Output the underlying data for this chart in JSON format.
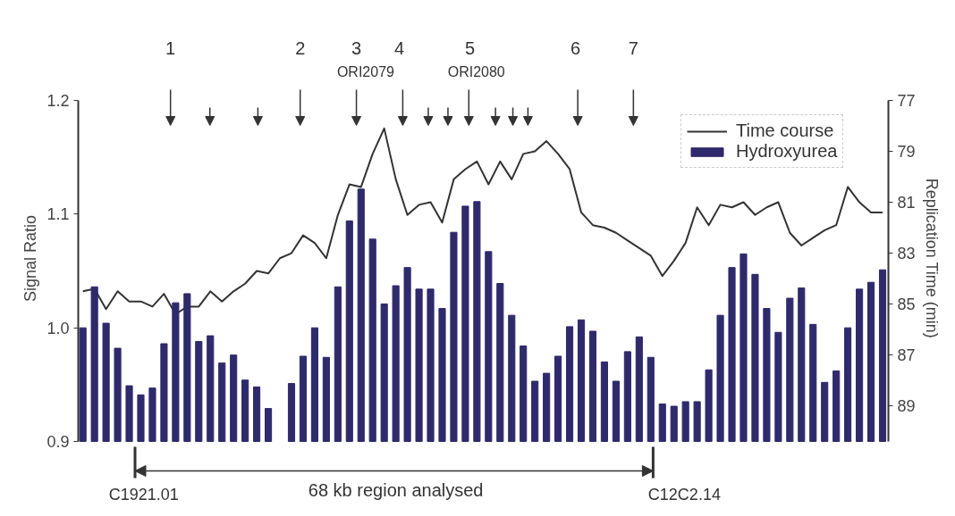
{
  "chart_data": {
    "type": "bar",
    "ylabel": "Signal Ratio",
    "y2label": "Replication Time (min)",
    "categories": [
      null,
      null,
      null,
      null,
      null,
      null,
      null,
      null,
      null,
      null,
      null,
      null,
      null,
      null,
      null,
      null,
      null,
      null,
      null,
      null,
      null,
      null,
      null,
      null,
      null,
      null,
      null,
      null,
      null,
      null,
      null,
      null,
      null,
      null,
      null,
      null,
      null,
      null,
      null,
      null,
      null,
      null,
      null,
      null,
      null,
      null,
      null,
      null,
      null,
      null,
      null,
      null,
      null,
      null,
      null,
      null,
      null,
      null,
      null,
      null,
      null,
      null,
      null,
      null,
      null,
      null,
      null,
      null,
      null,
      null
    ],
    "series": [
      {
        "name": "Time course",
        "type": "line",
        "axis": "y2",
        "color": "#333333",
        "values": [
          84.5,
          84.4,
          85.2,
          84.5,
          84.9,
          84.9,
          85.1,
          84.6,
          85.4,
          85.1,
          85.1,
          84.5,
          84.9,
          84.5,
          84.2,
          83.7,
          83.8,
          83.2,
          83.0,
          82.3,
          82.6,
          83.2,
          81.5,
          80.3,
          80.4,
          79.1,
          78.1,
          80.1,
          81.5,
          81.1,
          81.0,
          81.8,
          80.1,
          79.7,
          79.4,
          80.3,
          79.4,
          80.1,
          79.1,
          79.0,
          78.6,
          79.1,
          79.7,
          81.4,
          81.9,
          82.0,
          82.2,
          82.5,
          82.8,
          83.1,
          83.9,
          83.3,
          82.6,
          81.2,
          81.9,
          81.1,
          81.2,
          81.0,
          81.5,
          81.2,
          81.0,
          82.2,
          82.7,
          82.4,
          82.1,
          81.9,
          80.4,
          81.0,
          81.4,
          81.4
        ]
      },
      {
        "name": "Hydroxyurea",
        "color": "#2e2a6b",
        "values": [
          1.0,
          1.036,
          1.004,
          0.982,
          0.949,
          0.941,
          0.947,
          0.986,
          1.022,
          1.03,
          0.988,
          0.993,
          0.969,
          0.976,
          0.954,
          0.948,
          0.929,
          null,
          0.951,
          0.975,
          1.0,
          0.974,
          1.036,
          1.094,
          1.122,
          1.078,
          1.021,
          1.037,
          1.053,
          1.034,
          1.034,
          1.017,
          1.084,
          1.107,
          1.111,
          1.067,
          1.039,
          1.011,
          0.984,
          0.953,
          0.96,
          0.975,
          1.001,
          1.007,
          0.997,
          0.97,
          0.953,
          0.979,
          0.992,
          0.974,
          0.933,
          0.931,
          0.935,
          0.935,
          0.963,
          1.011,
          1.053,
          1.065,
          1.047,
          1.017,
          0.996,
          1.026,
          1.035,
          1.003,
          0.952,
          0.962,
          1.0,
          1.034,
          1.04,
          1.051
        ]
      }
    ],
    "ylim": [
      0.9,
      1.2
    ],
    "yticks": [
      0.9,
      {
        "value": 1.0,
        "label": "1.0"
      },
      1.1,
      1.2
    ],
    "y2lim": [
      90.4,
      77
    ],
    "y2ticks": [
      77,
      79,
      81,
      83,
      85,
      87,
      89
    ],
    "tick_labels": "y",
    "grid": false,
    "legend": "top right",
    "annotations": [
      "1",
      "2",
      "3",
      "ORI2079",
      "4",
      "5",
      "ORI2080",
      "6",
      "7",
      "68 kb region analysed",
      "C1921.01",
      "C12C2.14"
    ]
  }
}
